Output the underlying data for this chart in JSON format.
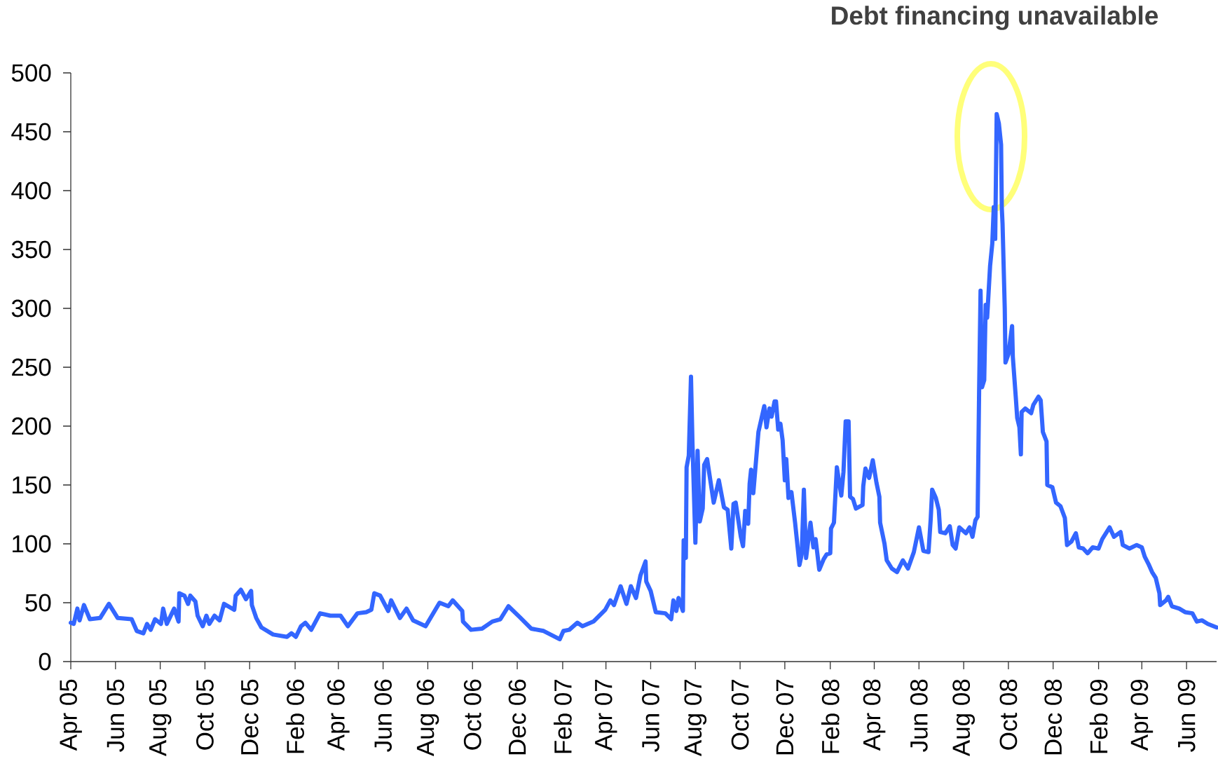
{
  "chart_data": {
    "type": "line",
    "annotations": [
      "Debt financing unavailable"
    ],
    "x": [
      "2005-04-01",
      "2005-04-05",
      "2005-04-10",
      "2005-04-13",
      "2005-04-19",
      "2005-04-27",
      "2005-05-11",
      "2005-05-23",
      "2005-06-04",
      "2005-06-23",
      "2005-06-30",
      "2005-07-09",
      "2005-07-14",
      "2005-07-19",
      "2005-07-25",
      "2005-08-02",
      "2005-08-05",
      "2005-08-10",
      "2005-08-20",
      "2005-08-26",
      "2005-08-27",
      "2005-09-03",
      "2005-09-08",
      "2005-09-11",
      "2005-09-18",
      "2005-09-21",
      "2005-09-28",
      "2005-10-03",
      "2005-10-07",
      "2005-10-14",
      "2005-10-21",
      "2005-10-27",
      "2005-11-10",
      "2005-11-12",
      "2005-11-19",
      "2005-11-26",
      "2005-12-03",
      "2005-12-04",
      "2005-12-10",
      "2005-12-17",
      "2006-01-02",
      "2006-01-21",
      "2006-01-27",
      "2006-02-02",
      "2006-02-09",
      "2006-02-15",
      "2006-02-23",
      "2006-03-07",
      "2006-03-21",
      "2006-04-04",
      "2006-04-14",
      "2006-04-27",
      "2006-05-09",
      "2006-05-16",
      "2006-05-20",
      "2006-05-28",
      "2006-06-08",
      "2006-06-12",
      "2006-06-24",
      "2006-07-03",
      "2006-07-12",
      "2006-07-29",
      "2006-08-17",
      "2006-08-29",
      "2006-09-04",
      "2006-09-17",
      "2006-09-18",
      "2006-09-29",
      "2006-10-14",
      "2006-10-28",
      "2006-11-08",
      "2006-11-19",
      "2006-12-04",
      "2006-12-20",
      "2007-01-06",
      "2007-01-28",
      "2007-02-02",
      "2007-02-10",
      "2007-02-21",
      "2007-02-28",
      "2007-03-15",
      "2007-03-31",
      "2007-04-07",
      "2007-04-12",
      "2007-04-21",
      "2007-04-29",
      "2007-05-05",
      "2007-05-12",
      "2007-05-18",
      "2007-05-25",
      "2007-05-26",
      "2007-06-01",
      "2007-06-08",
      "2007-06-21",
      "2007-06-29",
      "2007-07-02",
      "2007-07-06",
      "2007-07-09",
      "2007-07-15",
      "2007-07-16",
      "2007-07-19",
      "2007-07-20",
      "2007-07-23",
      "2007-07-26",
      "2007-07-28",
      "2007-08-01",
      "2007-08-04",
      "2007-08-07",
      "2007-08-11",
      "2007-08-13",
      "2007-08-17",
      "2007-08-26",
      "2007-09-02",
      "2007-09-09",
      "2007-09-14",
      "2007-09-19",
      "2007-09-22",
      "2007-09-25",
      "2007-10-02",
      "2007-10-05",
      "2007-10-08",
      "2007-10-12",
      "2007-10-14",
      "2007-10-16",
      "2007-10-19",
      "2007-10-26",
      "2007-11-03",
      "2007-11-06",
      "2007-11-10",
      "2007-11-13",
      "2007-11-17",
      "2007-11-19",
      "2007-11-22",
      "2007-11-25",
      "2007-11-28",
      "2007-12-01",
      "2007-12-03",
      "2007-12-06",
      "2007-12-10",
      "2007-12-15",
      "2007-12-21",
      "2007-12-24",
      "2007-12-27",
      "2007-12-30",
      "2008-01-05",
      "2008-01-09",
      "2008-01-12",
      "2008-01-17",
      "2008-01-23",
      "2008-01-27",
      "2008-02-01",
      "2008-02-02",
      "2008-02-06",
      "2008-02-10",
      "2008-02-16",
      "2008-02-19",
      "2008-02-22",
      "2008-02-26",
      "2008-02-28",
      "2008-03-03",
      "2008-03-07",
      "2008-03-16",
      "2008-03-17",
      "2008-03-20",
      "2008-03-25",
      "2008-03-30",
      "2008-04-04",
      "2008-04-08",
      "2008-04-09",
      "2008-04-15",
      "2008-04-18",
      "2008-04-25",
      "2008-05-02",
      "2008-05-10",
      "2008-05-17",
      "2008-05-25",
      "2008-06-01",
      "2008-06-07",
      "2008-06-14",
      "2008-06-17",
      "2008-06-19",
      "2008-06-24",
      "2008-06-28",
      "2008-06-30",
      "2008-07-07",
      "2008-07-13",
      "2008-07-17",
      "2008-07-21",
      "2008-07-26",
      "2008-08-04",
      "2008-08-09",
      "2008-08-13",
      "2008-08-17",
      "2008-08-20",
      "2008-08-22",
      "2008-08-24",
      "2008-08-26",
      "2008-08-29",
      "2008-08-31",
      "2008-09-02",
      "2008-09-06",
      "2008-09-09",
      "2008-09-11",
      "2008-09-13",
      "2008-09-15",
      "2008-09-18",
      "2008-09-21",
      "2008-09-22",
      "2008-09-23",
      "2008-09-26",
      "2008-09-27",
      "2008-10-01",
      "2008-10-06",
      "2008-10-07",
      "2008-10-11",
      "2008-10-13",
      "2008-10-16",
      "2008-10-18",
      "2008-10-19",
      "2008-10-24",
      "2008-11-01",
      "2008-11-04",
      "2008-11-11",
      "2008-11-14",
      "2008-11-17",
      "2008-11-22",
      "2008-11-23",
      "2008-11-30",
      "2008-12-05",
      "2008-12-11",
      "2008-12-17",
      "2008-12-20",
      "2008-12-26",
      "2009-01-01",
      "2009-01-05",
      "2009-01-11",
      "2009-01-17",
      "2009-01-24",
      "2009-02-01",
      "2009-02-06",
      "2009-02-16",
      "2009-02-22",
      "2009-03-03",
      "2009-03-06",
      "2009-03-15",
      "2009-03-25",
      "2009-04-01",
      "2009-04-05",
      "2009-04-10",
      "2009-04-15",
      "2009-04-20",
      "2009-04-25",
      "2009-04-26",
      "2009-05-04",
      "2009-05-07",
      "2009-05-12",
      "2009-05-22",
      "2009-05-30",
      "2009-06-09",
      "2009-06-15",
      "2009-06-22",
      "2009-06-30",
      "2009-07-12"
    ],
    "values": [
      33,
      32,
      45,
      35,
      48,
      36,
      37,
      49,
      37,
      36,
      26,
      24,
      32,
      27,
      36,
      32,
      45,
      32,
      45,
      34,
      58,
      56,
      49,
      56,
      51,
      39,
      30,
      39,
      32,
      39,
      35,
      49,
      44,
      56,
      61,
      53,
      60,
      48,
      37,
      29,
      23,
      21,
      24,
      21,
      30,
      33,
      27,
      41,
      39,
      39,
      30,
      41,
      42,
      44,
      58,
      56,
      43,
      52,
      37,
      45,
      35,
      30,
      50,
      47,
      52,
      43,
      34,
      27,
      28,
      34,
      36,
      47,
      38,
      28,
      26,
      19,
      26,
      27,
      33,
      30,
      34,
      44,
      52,
      48,
      64,
      49,
      64,
      54,
      73,
      85,
      68,
      60,
      42,
      41,
      36,
      52,
      43,
      54,
      43,
      103,
      88,
      165,
      175,
      242,
      186,
      101,
      179,
      119,
      130,
      167,
      172,
      135,
      154,
      131,
      129,
      96,
      134,
      135,
      106,
      98,
      128,
      117,
      151,
      163,
      143,
      195,
      217,
      199,
      215,
      208,
      221,
      221,
      197,
      202,
      188,
      154,
      172,
      139,
      144,
      118,
      82,
      91,
      146,
      88,
      118,
      97,
      104,
      78,
      87,
      91,
      92,
      113,
      118,
      165,
      141,
      161,
      204,
      204,
      140,
      138,
      130,
      133,
      149,
      164,
      156,
      171,
      152,
      140,
      118,
      100,
      86,
      79,
      76,
      86,
      79,
      93,
      114,
      94,
      93,
      121,
      146,
      139,
      129,
      110,
      109,
      115,
      99,
      96,
      114,
      109,
      114,
      106,
      120,
      123,
      228,
      315,
      233,
      239,
      303,
      292,
      336,
      355,
      386,
      359,
      465,
      457,
      439,
      385,
      372,
      300,
      254,
      261,
      285,
      259,
      225,
      207,
      199,
      176,
      212,
      215,
      211,
      218,
      225,
      222,
      195,
      187,
      150,
      148,
      135,
      132,
      122,
      99,
      102,
      109,
      97,
      96,
      92,
      97,
      96,
      104,
      114,
      106,
      110,
      99,
      96,
      99,
      97,
      89,
      83,
      76,
      71,
      58,
      48,
      52,
      55,
      47,
      45,
      42,
      41,
      34,
      35,
      32,
      29
    ],
    "color": "#3366ff",
    "marker": "none",
    "line_style": "solid",
    "xlim": [
      "2005-04-01",
      "2009-07-12"
    ],
    "xticks": [
      {
        "value": "2005-04-01",
        "label": "Apr 05"
      },
      {
        "value": "2005-06-01",
        "label": "Jun 05"
      },
      {
        "value": "2005-08-01",
        "label": "Aug 05"
      },
      {
        "value": "2005-10-01",
        "label": "Oct 05"
      },
      {
        "value": "2005-12-01",
        "label": "Dec 05"
      },
      {
        "value": "2006-02-01",
        "label": "Feb 06"
      },
      {
        "value": "2006-04-01",
        "label": "Apr 06"
      },
      {
        "value": "2006-06-01",
        "label": "Jun 06"
      },
      {
        "value": "2006-08-01",
        "label": "Aug 06"
      },
      {
        "value": "2006-10-01",
        "label": "Oct 06"
      },
      {
        "value": "2006-12-01",
        "label": "Dec 06"
      },
      {
        "value": "2007-02-01",
        "label": "Feb 07"
      },
      {
        "value": "2007-04-01",
        "label": "Apr 07"
      },
      {
        "value": "2007-06-01",
        "label": "Jun 07"
      },
      {
        "value": "2007-08-01",
        "label": "Aug 07"
      },
      {
        "value": "2007-10-01",
        "label": "Oct 07"
      },
      {
        "value": "2007-12-01",
        "label": "Dec 07"
      },
      {
        "value": "2008-02-01",
        "label": "Feb 08"
      },
      {
        "value": "2008-04-01",
        "label": "Apr 08"
      },
      {
        "value": "2008-06-01",
        "label": "Jun 08"
      },
      {
        "value": "2008-08-01",
        "label": "Aug 08"
      },
      {
        "value": "2008-10-01",
        "label": "Oct 08"
      },
      {
        "value": "2008-12-01",
        "label": "Dec 08"
      },
      {
        "value": "2009-02-01",
        "label": "Feb 09"
      },
      {
        "value": "2009-04-01",
        "label": "Apr 09"
      },
      {
        "value": "2009-06-01",
        "label": "Jun 09"
      }
    ],
    "ylim": [
      0,
      500
    ],
    "yticks": [
      0,
      50,
      100,
      150,
      200,
      250,
      300,
      350,
      400,
      450,
      500
    ]
  }
}
